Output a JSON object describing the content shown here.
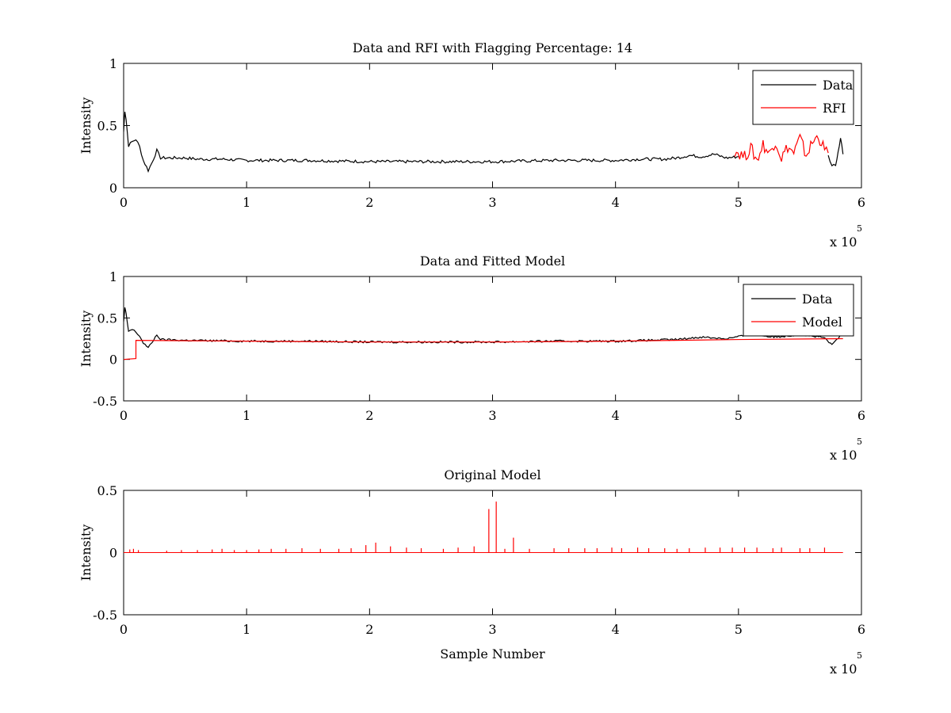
{
  "chart_data": [
    {
      "type": "line",
      "title": "Data and RFI with Flagging Percentage: 14",
      "xlabel": "",
      "ylabel": "Intensity",
      "xlim": [
        0,
        6
      ],
      "ylim": [
        0,
        1
      ],
      "x_ticks": [
        "0",
        "1",
        "2",
        "3",
        "4",
        "5",
        "6"
      ],
      "y_ticks": [
        "0",
        "0.5",
        "1"
      ],
      "x_multiplier": {
        "base": "x 10",
        "exponent": "5"
      },
      "legend": {
        "position": "top-right"
      },
      "series": [
        {
          "name": "Data",
          "color": "#000000",
          "x": [
            0,
            0.01,
            0.02,
            0.04,
            0.07,
            0.1,
            0.13,
            0.16,
            0.2,
            0.23,
            0.27,
            0.3,
            0.4,
            0.5,
            0.6,
            0.8,
            1.0,
            1.5,
            2.0,
            2.5,
            3.0,
            3.5,
            4.0,
            4.2,
            4.4,
            4.5,
            4.6,
            4.7,
            4.8,
            4.9,
            5.0
          ],
          "y": [
            0.45,
            0.62,
            0.55,
            0.34,
            0.37,
            0.39,
            0.33,
            0.22,
            0.14,
            0.2,
            0.3,
            0.24,
            0.24,
            0.24,
            0.23,
            0.23,
            0.22,
            0.22,
            0.21,
            0.21,
            0.21,
            0.22,
            0.22,
            0.23,
            0.23,
            0.24,
            0.26,
            0.25,
            0.27,
            0.24,
            0.25
          ]
        },
        {
          "name": "RFI",
          "color": "#ff0000",
          "x": [
            4.97,
            5.05,
            5.1,
            5.15,
            5.2,
            5.25,
            5.3,
            5.35,
            5.4,
            5.45,
            5.5,
            5.55,
            5.6,
            5.65,
            5.7,
            5.73
          ],
          "y": [
            0.3,
            0.25,
            0.32,
            0.22,
            0.35,
            0.27,
            0.38,
            0.24,
            0.33,
            0.28,
            0.4,
            0.26,
            0.36,
            0.42,
            0.3,
            0.28
          ]
        },
        {
          "name": "",
          "color": "#000000",
          "x": [
            5.73,
            5.76,
            5.79,
            5.81,
            5.83,
            5.85
          ],
          "y": [
            0.26,
            0.17,
            0.19,
            0.28,
            0.4,
            0.27
          ]
        }
      ]
    },
    {
      "type": "line",
      "title": "Data and Fitted Model",
      "xlabel": "",
      "ylabel": "Intensity",
      "xlim": [
        0,
        6
      ],
      "ylim": [
        -0.5,
        1
      ],
      "x_ticks": [
        "0",
        "1",
        "2",
        "3",
        "4",
        "5",
        "6"
      ],
      "y_ticks": [
        "-0.5",
        "0",
        "0.5",
        "1"
      ],
      "x_multiplier": {
        "base": "x 10",
        "exponent": "5"
      },
      "legend": {
        "position": "top-right"
      },
      "series": [
        {
          "name": "Data",
          "color": "#000000",
          "x": [
            0,
            0.01,
            0.02,
            0.04,
            0.07,
            0.1,
            0.13,
            0.16,
            0.2,
            0.23,
            0.27,
            0.3,
            0.5,
            1.0,
            1.5,
            2.0,
            2.5,
            3.0,
            3.5,
            4.0,
            4.5,
            4.7,
            4.9,
            5.1,
            5.3,
            5.5,
            5.7,
            5.76,
            5.8,
            5.85
          ],
          "y": [
            0.45,
            0.62,
            0.55,
            0.34,
            0.36,
            0.33,
            0.28,
            0.2,
            0.14,
            0.2,
            0.3,
            0.24,
            0.23,
            0.22,
            0.22,
            0.21,
            0.21,
            0.21,
            0.22,
            0.22,
            0.24,
            0.27,
            0.25,
            0.3,
            0.27,
            0.3,
            0.26,
            0.17,
            0.25,
            0.3
          ]
        },
        {
          "name": "Model",
          "color": "#ff0000",
          "x": [
            0,
            0.1,
            0.1,
            1.0,
            2.0,
            3.0,
            4.0,
            5.0,
            5.85
          ],
          "y": [
            0.0,
            0.01,
            0.23,
            0.22,
            0.21,
            0.21,
            0.22,
            0.24,
            0.25
          ]
        }
      ]
    },
    {
      "type": "line",
      "title": "Original Model",
      "xlabel": "Sample Number",
      "ylabel": "Intensity",
      "xlim": [
        0,
        6
      ],
      "ylim": [
        -0.5,
        0.5
      ],
      "x_ticks": [
        "0",
        "1",
        "2",
        "3",
        "4",
        "5",
        "6"
      ],
      "y_ticks": [
        "-0.5",
        "0",
        "0.5"
      ],
      "x_multiplier": {
        "base": "x 10",
        "exponent": "5"
      },
      "series": [
        {
          "name": "",
          "color": "#ff0000",
          "baseline": [
            0,
            5.85,
            0.0
          ],
          "spikes_x": [
            0.05,
            0.08,
            0.12,
            0.35,
            0.47,
            0.6,
            0.72,
            0.8,
            0.9,
            1.0,
            1.1,
            1.2,
            1.32,
            1.45,
            1.6,
            1.75,
            1.85,
            1.97,
            2.05,
            2.17,
            2.3,
            2.42,
            2.6,
            2.72,
            2.85,
            2.97,
            3.03,
            3.1,
            3.17,
            3.3,
            3.5,
            3.62,
            3.75,
            3.85,
            3.97,
            4.05,
            4.18,
            4.27,
            4.4,
            4.5,
            4.6,
            4.73,
            4.85,
            4.95,
            5.05,
            5.15,
            5.28,
            5.35,
            5.5,
            5.58,
            5.7
          ],
          "spikes_y": [
            0.025,
            0.03,
            0.02,
            0.015,
            0.02,
            0.02,
            0.025,
            0.03,
            0.02,
            0.02,
            0.025,
            0.03,
            0.03,
            0.035,
            0.03,
            0.03,
            0.035,
            0.06,
            0.08,
            0.05,
            0.04,
            0.035,
            0.03,
            0.04,
            0.05,
            0.35,
            0.41,
            0.03,
            0.12,
            0.03,
            0.035,
            0.035,
            0.035,
            0.035,
            0.04,
            0.035,
            0.04,
            0.035,
            0.035,
            0.03,
            0.035,
            0.04,
            0.04,
            0.04,
            0.04,
            0.04,
            0.035,
            0.04,
            0.035,
            0.035,
            0.04
          ]
        }
      ]
    }
  ]
}
